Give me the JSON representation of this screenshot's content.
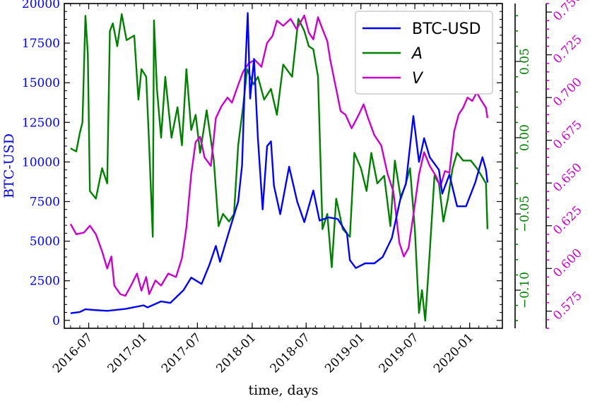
{
  "chart_data": {
    "type": "line",
    "xlabel": "time, days",
    "x_ticks": [
      "2016-07",
      "2017-01",
      "2017-07",
      "2018-01",
      "2018-07",
      "2019-01",
      "2019-07",
      "2020-01"
    ],
    "x_range": [
      "2016-04-10",
      "2020-04-20"
    ],
    "axes": [
      {
        "id": "left",
        "label": "BTC-USD",
        "color": "#0000ff",
        "ylim": [
          -500,
          20000
        ],
        "ticks": [
          "0",
          "2500",
          "5000",
          "7500",
          "10000",
          "12500",
          "15000",
          "17500",
          "20000"
        ],
        "tick_values": [
          0,
          2500,
          5000,
          7500,
          10000,
          12500,
          15000,
          17500,
          20000
        ]
      },
      {
        "id": "right1",
        "label": "",
        "color": "#008000",
        "ylim": [
          -0.125,
          0.088
        ],
        "ticks": [
          "−0.10",
          "−0.05",
          "0.00",
          "0.05"
        ],
        "tick_values": [
          -0.1,
          -0.05,
          0.0,
          0.05
        ]
      },
      {
        "id": "right2",
        "label": "",
        "color": "#cc00cc",
        "ylim": [
          0.565,
          0.755
        ],
        "ticks": [
          "0.575",
          "0.600",
          "0.625",
          "0.650",
          "0.675",
          "0.700",
          "0.725",
          "0.750"
        ],
        "tick_values": [
          0.575,
          0.6,
          0.625,
          0.65,
          0.675,
          0.7,
          0.725,
          0.75
        ]
      }
    ],
    "legend": {
      "position": "top-right",
      "entries": [
        {
          "label": "BTC-USD",
          "color": "#0000ff",
          "italic": false
        },
        {
          "label": "A",
          "color": "#008000",
          "italic": true
        },
        {
          "label": "V",
          "color": "#cc00cc",
          "italic": true
        }
      ]
    },
    "series": [
      {
        "name": "BTC-USD",
        "axis": "left",
        "color": "#0000ff",
        "points": [
          [
            "2016-05-01",
            450
          ],
          [
            "2016-06-01",
            530
          ],
          [
            "2016-06-20",
            700
          ],
          [
            "2016-07-15",
            660
          ],
          [
            "2016-09-01",
            600
          ],
          [
            "2016-11-01",
            720
          ],
          [
            "2017-01-01",
            950
          ],
          [
            "2017-01-15",
            820
          ],
          [
            "2017-03-01",
            1200
          ],
          [
            "2017-04-01",
            1100
          ],
          [
            "2017-05-15",
            1900
          ],
          [
            "2017-06-10",
            2700
          ],
          [
            "2017-07-15",
            2300
          ],
          [
            "2017-08-10",
            3500
          ],
          [
            "2017-09-01",
            4700
          ],
          [
            "2017-09-15",
            3700
          ],
          [
            "2017-10-15",
            5600
          ],
          [
            "2017-11-15",
            7500
          ],
          [
            "2017-11-28",
            9800
          ],
          [
            "2017-12-08",
            15500
          ],
          [
            "2017-12-17",
            19400
          ],
          [
            "2017-12-25",
            14000
          ],
          [
            "2018-01-07",
            16500
          ],
          [
            "2018-01-20",
            11500
          ],
          [
            "2018-02-05",
            7000
          ],
          [
            "2018-02-20",
            11000
          ],
          [
            "2018-03-05",
            11300
          ],
          [
            "2018-03-15",
            8500
          ],
          [
            "2018-04-05",
            6700
          ],
          [
            "2018-05-05",
            9700
          ],
          [
            "2018-06-01",
            7500
          ],
          [
            "2018-06-25",
            6200
          ],
          [
            "2018-07-25",
            8200
          ],
          [
            "2018-08-15",
            6300
          ],
          [
            "2018-09-15",
            6500
          ],
          [
            "2018-10-15",
            6400
          ],
          [
            "2018-11-15",
            5500
          ],
          [
            "2018-11-25",
            3800
          ],
          [
            "2018-12-15",
            3300
          ],
          [
            "2019-01-15",
            3600
          ],
          [
            "2019-02-15",
            3600
          ],
          [
            "2019-03-15",
            4000
          ],
          [
            "2019-04-15",
            5200
          ],
          [
            "2019-05-15",
            7800
          ],
          [
            "2019-06-01",
            8600
          ],
          [
            "2019-06-26",
            12900
          ],
          [
            "2019-07-15",
            10000
          ],
          [
            "2019-08-01",
            11500
          ],
          [
            "2019-08-20",
            10300
          ],
          [
            "2019-09-20",
            9500
          ],
          [
            "2019-10-01",
            8000
          ],
          [
            "2019-10-25",
            9200
          ],
          [
            "2019-11-20",
            7200
          ],
          [
            "2019-12-20",
            7200
          ],
          [
            "2020-01-20",
            8700
          ],
          [
            "2020-02-13",
            10300
          ],
          [
            "2020-02-25",
            9500
          ],
          [
            "2020-03-01",
            8700
          ]
        ]
      },
      {
        "name": "A",
        "axis": "right1",
        "color": "#008000",
        "points": [
          [
            "2016-05-01",
            -0.007
          ],
          [
            "2016-05-20",
            -0.009
          ],
          [
            "2016-06-01",
            0.003
          ],
          [
            "2016-06-10",
            0.01
          ],
          [
            "2016-06-20",
            0.08
          ],
          [
            "2016-06-28",
            0.055
          ],
          [
            "2016-07-05",
            -0.035
          ],
          [
            "2016-07-25",
            -0.04
          ],
          [
            "2016-08-15",
            -0.02
          ],
          [
            "2016-09-01",
            -0.03
          ],
          [
            "2016-09-10",
            0.07
          ],
          [
            "2016-09-20",
            0.075
          ],
          [
            "2016-10-05",
            0.06
          ],
          [
            "2016-10-20",
            0.081
          ],
          [
            "2016-11-05",
            0.064
          ],
          [
            "2016-12-01",
            0.067
          ],
          [
            "2016-12-15",
            0.025
          ],
          [
            "2016-12-25",
            0.045
          ],
          [
            "2017-01-10",
            0.04
          ],
          [
            "2017-01-20",
            -0.005
          ],
          [
            "2017-02-01",
            -0.065
          ],
          [
            "2017-02-05",
            0.077
          ],
          [
            "2017-02-15",
            0.032
          ],
          [
            "2017-03-01",
            0.0
          ],
          [
            "2017-03-15",
            0.04
          ],
          [
            "2017-04-05",
            0.0
          ],
          [
            "2017-04-25",
            0.02
          ],
          [
            "2017-05-10",
            -0.005
          ],
          [
            "2017-05-25",
            0.045
          ],
          [
            "2017-06-10",
            0.005
          ],
          [
            "2017-06-25",
            0.015
          ],
          [
            "2017-07-10",
            -0.01
          ],
          [
            "2017-08-01",
            0.018
          ],
          [
            "2017-08-25",
            -0.015
          ],
          [
            "2017-09-10",
            -0.058
          ],
          [
            "2017-09-25",
            -0.05
          ],
          [
            "2017-10-15",
            -0.055
          ],
          [
            "2017-11-01",
            -0.05
          ],
          [
            "2017-11-15",
            -0.005
          ],
          [
            "2017-12-01",
            0.02
          ],
          [
            "2017-12-15",
            0.045
          ],
          [
            "2018-01-05",
            0.035
          ],
          [
            "2018-01-20",
            0.04
          ],
          [
            "2018-02-10",
            0.025
          ],
          [
            "2018-03-05",
            0.032
          ],
          [
            "2018-03-25",
            0.015
          ],
          [
            "2018-04-15",
            0.048
          ],
          [
            "2018-05-15",
            0.04
          ],
          [
            "2018-06-05",
            0.078
          ],
          [
            "2018-06-25",
            0.07
          ],
          [
            "2018-07-10",
            0.06
          ],
          [
            "2018-07-25",
            0.058
          ],
          [
            "2018-08-10",
            0.04
          ],
          [
            "2018-08-25",
            -0.06
          ],
          [
            "2018-09-10",
            -0.05
          ],
          [
            "2018-09-25",
            -0.085
          ],
          [
            "2018-10-10",
            -0.04
          ],
          [
            "2018-11-01",
            -0.06
          ],
          [
            "2018-11-25",
            -0.065
          ],
          [
            "2018-12-10",
            -0.01
          ],
          [
            "2019-01-01",
            -0.02
          ],
          [
            "2019-01-20",
            -0.035
          ],
          [
            "2019-02-05",
            -0.01
          ],
          [
            "2019-02-25",
            -0.03
          ],
          [
            "2019-03-20",
            -0.025
          ],
          [
            "2019-04-10",
            -0.058
          ],
          [
            "2019-04-25",
            -0.015
          ],
          [
            "2019-05-15",
            -0.04
          ],
          [
            "2019-06-01",
            -0.03
          ],
          [
            "2019-06-15",
            -0.02
          ],
          [
            "2019-07-01",
            -0.06
          ],
          [
            "2019-07-15",
            -0.115
          ],
          [
            "2019-07-25",
            -0.1
          ],
          [
            "2019-08-05",
            -0.12
          ],
          [
            "2019-08-20",
            -0.075
          ],
          [
            "2019-09-05",
            -0.025
          ],
          [
            "2019-09-20",
            -0.03
          ],
          [
            "2019-10-05",
            -0.055
          ],
          [
            "2019-10-20",
            -0.04
          ],
          [
            "2019-11-05",
            -0.02
          ],
          [
            "2019-11-20",
            -0.01
          ],
          [
            "2019-12-10",
            -0.015
          ],
          [
            "2020-01-05",
            -0.015
          ],
          [
            "2020-01-25",
            -0.02
          ],
          [
            "2020-02-10",
            -0.025
          ],
          [
            "2020-02-25",
            -0.03
          ],
          [
            "2020-03-01",
            -0.06
          ]
        ]
      },
      {
        "name": "V",
        "axis": "right2",
        "color": "#cc00cc",
        "points": [
          [
            "2016-05-01",
            0.626
          ],
          [
            "2016-05-20",
            0.62
          ],
          [
            "2016-06-15",
            0.621
          ],
          [
            "2016-07-05",
            0.625
          ],
          [
            "2016-07-25",
            0.62
          ],
          [
            "2016-08-15",
            0.61
          ],
          [
            "2016-09-01",
            0.6
          ],
          [
            "2016-09-15",
            0.607
          ],
          [
            "2016-09-25",
            0.59
          ],
          [
            "2016-10-15",
            0.585
          ],
          [
            "2016-11-01",
            0.584
          ],
          [
            "2016-11-20",
            0.59
          ],
          [
            "2016-12-10",
            0.597
          ],
          [
            "2016-12-25",
            0.587
          ],
          [
            "2017-01-10",
            0.595
          ],
          [
            "2017-01-20",
            0.585
          ],
          [
            "2017-02-10",
            0.593
          ],
          [
            "2017-03-01",
            0.59
          ],
          [
            "2017-03-25",
            0.597
          ],
          [
            "2017-04-20",
            0.595
          ],
          [
            "2017-05-10",
            0.606
          ],
          [
            "2017-05-25",
            0.624
          ],
          [
            "2017-06-10",
            0.655
          ],
          [
            "2017-06-25",
            0.674
          ],
          [
            "2017-07-10",
            0.677
          ],
          [
            "2017-07-25",
            0.665
          ],
          [
            "2017-08-15",
            0.66
          ],
          [
            "2017-09-01",
            0.688
          ],
          [
            "2017-09-20",
            0.695
          ],
          [
            "2017-10-10",
            0.7
          ],
          [
            "2017-10-25",
            0.697
          ],
          [
            "2017-11-10",
            0.705
          ],
          [
            "2017-12-01",
            0.715
          ],
          [
            "2017-12-20",
            0.72
          ],
          [
            "2018-01-10",
            0.722
          ],
          [
            "2018-02-01",
            0.718
          ],
          [
            "2018-02-20",
            0.732
          ],
          [
            "2018-03-10",
            0.736
          ],
          [
            "2018-03-25",
            0.745
          ],
          [
            "2018-04-15",
            0.742
          ],
          [
            "2018-05-10",
            0.746
          ],
          [
            "2018-05-30",
            0.74
          ],
          [
            "2018-06-25",
            0.748
          ],
          [
            "2018-07-10",
            0.738
          ],
          [
            "2018-07-25",
            0.734
          ],
          [
            "2018-08-10",
            0.747
          ],
          [
            "2018-08-25",
            0.74
          ],
          [
            "2018-09-10",
            0.733
          ],
          [
            "2018-09-20",
            0.722
          ],
          [
            "2018-10-10",
            0.705
          ],
          [
            "2018-10-25",
            0.692
          ],
          [
            "2018-11-10",
            0.69
          ],
          [
            "2018-12-01",
            0.682
          ],
          [
            "2018-12-25",
            0.69
          ],
          [
            "2019-01-10",
            0.696
          ],
          [
            "2019-01-25",
            0.688
          ],
          [
            "2019-02-15",
            0.678
          ],
          [
            "2019-03-10",
            0.672
          ],
          [
            "2019-04-01",
            0.655
          ],
          [
            "2019-04-20",
            0.645
          ],
          [
            "2019-05-10",
            0.615
          ],
          [
            "2019-05-25",
            0.607
          ],
          [
            "2019-06-10",
            0.612
          ],
          [
            "2019-06-25",
            0.63
          ],
          [
            "2019-07-15",
            0.655
          ],
          [
            "2019-08-01",
            0.668
          ],
          [
            "2019-08-20",
            0.66
          ],
          [
            "2019-09-10",
            0.654
          ],
          [
            "2019-09-25",
            0.648
          ],
          [
            "2019-10-10",
            0.657
          ],
          [
            "2019-10-25",
            0.656
          ],
          [
            "2019-11-10",
            0.68
          ],
          [
            "2019-11-25",
            0.69
          ],
          [
            "2019-12-10",
            0.694
          ],
          [
            "2019-12-25",
            0.7
          ],
          [
            "2020-01-10",
            0.698
          ],
          [
            "2020-01-25",
            0.703
          ],
          [
            "2020-02-10",
            0.698
          ],
          [
            "2020-02-25",
            0.694
          ],
          [
            "2020-03-01",
            0.688
          ]
        ]
      }
    ]
  }
}
